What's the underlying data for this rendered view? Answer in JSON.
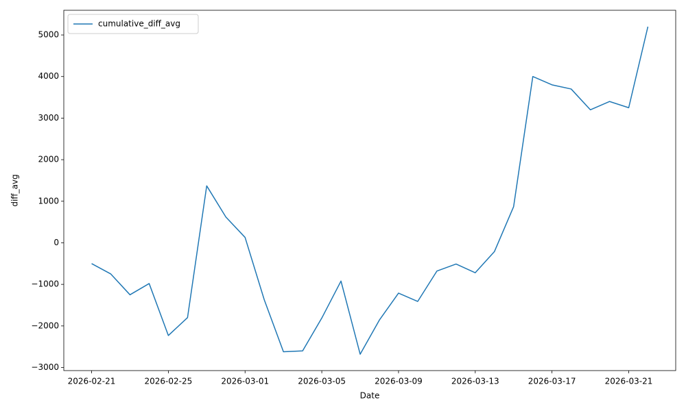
{
  "chart_data": {
    "type": "line",
    "x_label": "Date",
    "y_label": "diff_avg",
    "x": [
      "2026-02-21",
      "2026-02-22",
      "2026-02-23",
      "2026-02-24",
      "2026-02-25",
      "2026-02-26",
      "2026-02-27",
      "2026-02-28",
      "2026-03-01",
      "2026-03-02",
      "2026-03-03",
      "2026-03-04",
      "2026-03-05",
      "2026-03-06",
      "2026-03-07",
      "2026-03-08",
      "2026-03-09",
      "2026-03-10",
      "2026-03-11",
      "2026-03-12",
      "2026-03-13",
      "2026-03-14",
      "2026-03-15",
      "2026-03-16",
      "2026-03-17",
      "2026-03-18",
      "2026-03-19",
      "2026-03-20",
      "2026-03-21",
      "2026-03-22"
    ],
    "series": [
      {
        "name": "cumulative_diff_avg",
        "color": "#1f77b4",
        "values": [
          -500,
          -750,
          -1250,
          -980,
          -2230,
          -1800,
          1370,
          620,
          130,
          -1370,
          -2620,
          -2600,
          -1810,
          -920,
          -2680,
          -1860,
          -1210,
          -1410,
          -680,
          -510,
          -720,
          -210,
          870,
          4000,
          3800,
          3700,
          3200,
          3400,
          3250,
          5200
        ]
      }
    ],
    "xlim": [
      "2026-02-19T13:12:00",
      "2026-03-23T10:48:00"
    ],
    "xticks": [
      "2026-02-21",
      "2026-02-25",
      "2026-03-01",
      "2026-03-05",
      "2026-03-09",
      "2026-03-13",
      "2026-03-17",
      "2026-03-21"
    ],
    "ylim": [
      -3074,
      5594
    ],
    "yticks": [
      {
        "value": -3000,
        "label": "−3000"
      },
      {
        "value": -2000,
        "label": "−2000"
      },
      {
        "value": -1000,
        "label": "−1000"
      },
      0,
      1000,
      2000,
      3000,
      4000,
      5000
    ],
    "grid": false,
    "legend": "upper left"
  }
}
